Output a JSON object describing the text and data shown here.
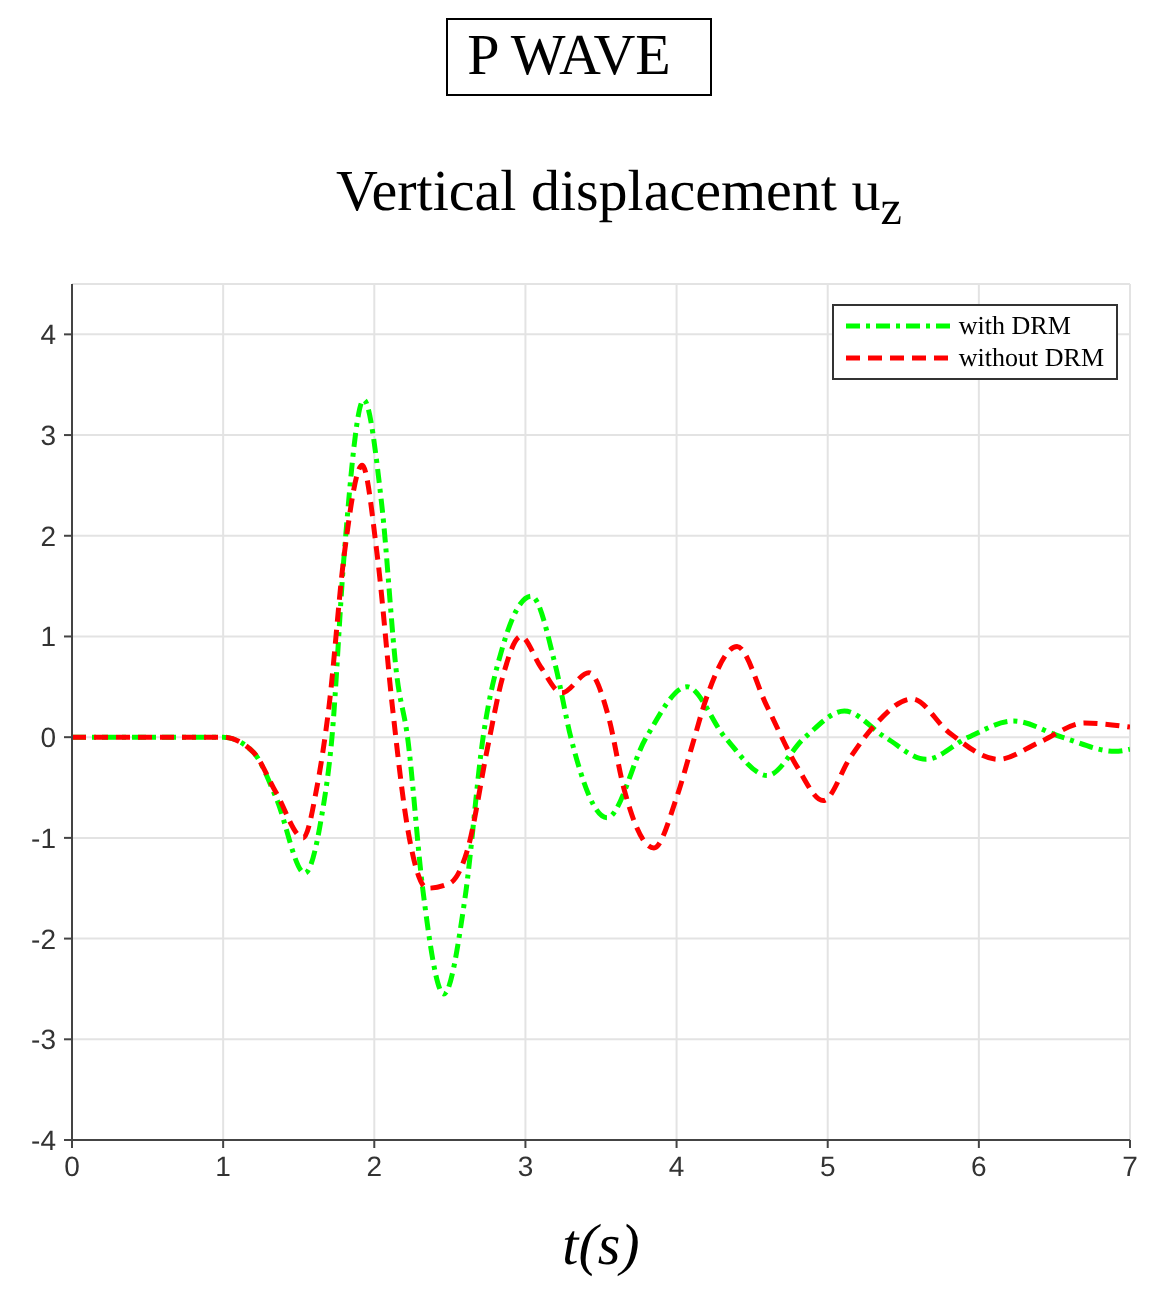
{
  "chart_data": {
    "type": "line",
    "title": "P WAVE",
    "subtitle": "Vertical displacement u$_{z}$",
    "xlabel": "t(s)",
    "xlim": [
      0,
      7
    ],
    "xticks": [
      0,
      1,
      2,
      3,
      4,
      5,
      6,
      7
    ],
    "ylim": [
      -4,
      4.5
    ],
    "yticks": [
      -4,
      -3,
      -2,
      -1,
      0,
      1,
      2,
      3,
      4
    ],
    "grid": true,
    "legend": "top right",
    "marker": "none",
    "series": [
      {
        "name": "with DRM",
        "color": "#00ff00",
        "line_style": "dashdot",
        "x": [
          0,
          1.0,
          1.2,
          1.35,
          1.54,
          1.65,
          1.72,
          1.8,
          1.93,
          2.05,
          2.15,
          2.22,
          2.32,
          2.46,
          2.6,
          2.72,
          2.85,
          3.04,
          3.2,
          3.3,
          3.54,
          3.8,
          4.07,
          4.32,
          4.6,
          4.85,
          5.11,
          5.38,
          5.65,
          5.93,
          6.23,
          6.55,
          6.9,
          7
        ],
        "values": [
          0,
          0,
          -0.15,
          -0.6,
          -1.35,
          -0.8,
          0,
          1.8,
          3.35,
          2.3,
          0.6,
          0,
          -1.5,
          -2.55,
          -1.6,
          0,
          0.9,
          1.4,
          0.7,
          0,
          -0.8,
          0,
          0.5,
          0,
          -0.38,
          0,
          0.26,
          0,
          -0.22,
          0,
          0.16,
          0,
          -0.14,
          -0.12
        ]
      },
      {
        "name": "without DRM",
        "color": "#ff0000",
        "line_style": "dashed",
        "x": [
          0,
          1.0,
          1.2,
          1.35,
          1.53,
          1.62,
          1.7,
          1.8,
          1.92,
          2.02,
          2.12,
          2.22,
          2.35,
          2.5,
          2.62,
          2.75,
          2.85,
          2.97,
          3.1,
          3.24,
          3.42,
          3.55,
          3.65,
          3.85,
          4.0,
          4.1,
          4.2,
          4.4,
          4.6,
          4.8,
          4.97,
          5.15,
          5.3,
          5.56,
          5.8,
          6.13,
          6.4,
          6.7,
          7
        ],
        "values": [
          0,
          0,
          -0.15,
          -0.55,
          -1.0,
          -0.5,
          0.3,
          1.8,
          2.7,
          1.8,
          0.3,
          -0.9,
          -1.5,
          -1.45,
          -1.1,
          -0.1,
          0.6,
          1.0,
          0.7,
          0.44,
          0.64,
          0.2,
          -0.5,
          -1.1,
          -0.6,
          -0.1,
          0.4,
          0.9,
          0.3,
          -0.3,
          -0.63,
          -0.2,
          0.1,
          0.38,
          0.05,
          -0.22,
          -0.05,
          0.14,
          0.1
        ]
      }
    ]
  }
}
